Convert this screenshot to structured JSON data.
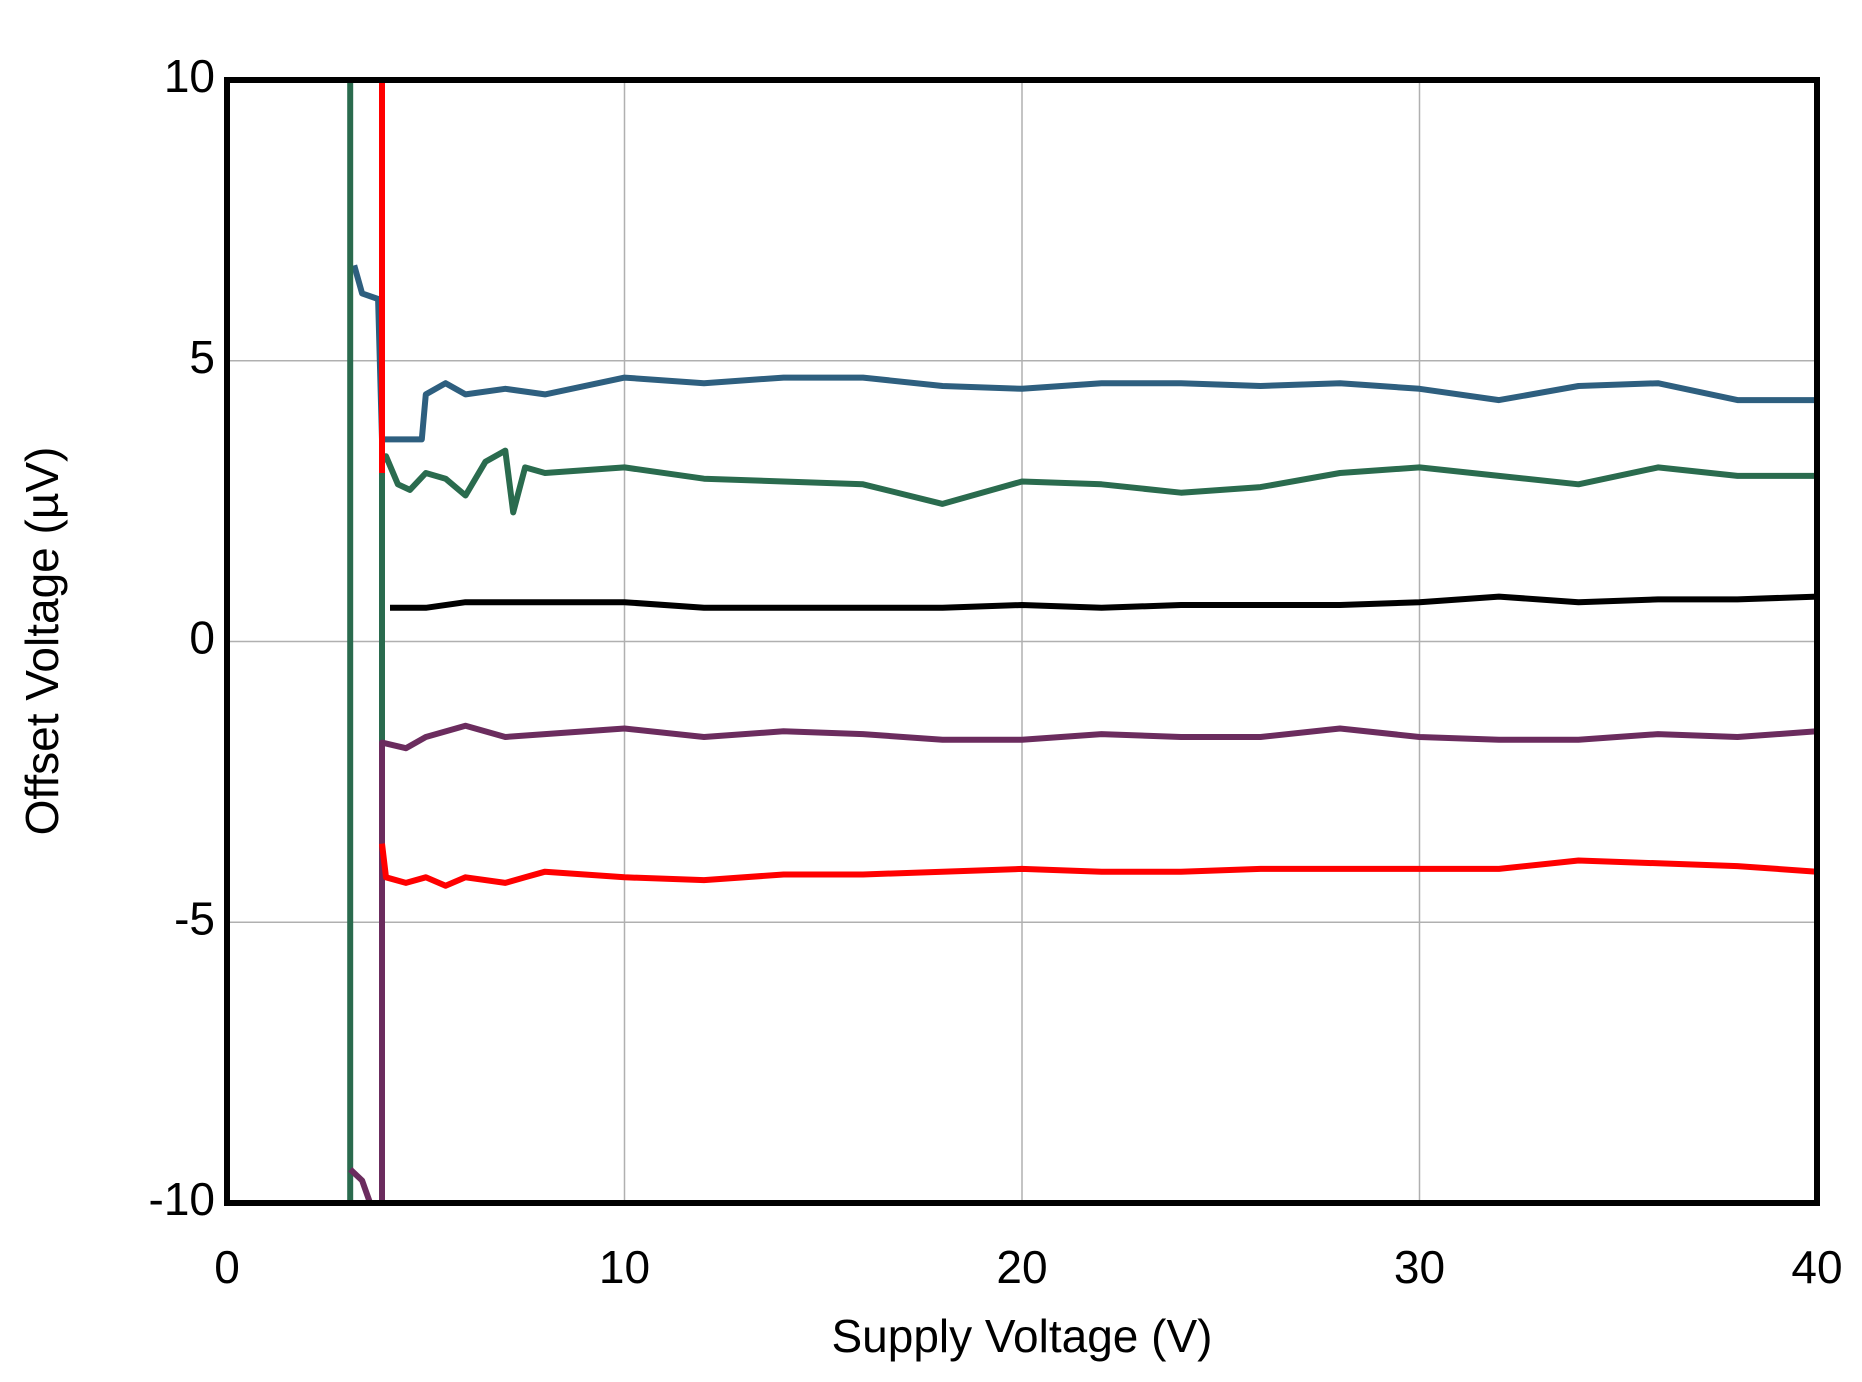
{
  "chart_data": {
    "type": "line",
    "x_label": "Supply Voltage (V)",
    "y_label": "Offset Voltage (µV)",
    "xlim": [
      0,
      40
    ],
    "ylim": [
      -10,
      10
    ],
    "xticks": [
      0,
      10,
      20,
      30,
      40
    ],
    "yticks": [
      -10,
      -5,
      0,
      5,
      10
    ],
    "grid": true,
    "series": [
      {
        "color": "#2e5f7f",
        "x": [
          3.2,
          3.4,
          3.8,
          3.9,
          4.9,
          5.0,
          5.5,
          6,
          7,
          8,
          10,
          12,
          14,
          16,
          18,
          20,
          22,
          24,
          26,
          28,
          30,
          32,
          34,
          36,
          38,
          40
        ],
        "values": [
          6.7,
          6.2,
          6.1,
          3.6,
          3.6,
          4.4,
          4.6,
          4.4,
          4.5,
          4.4,
          4.7,
          4.6,
          4.7,
          4.7,
          4.55,
          4.5,
          4.6,
          4.6,
          4.55,
          4.6,
          4.5,
          4.3,
          4.55,
          4.6,
          4.3,
          4.3
        ]
      },
      {
        "color": "#2a6b4e",
        "x": [
          3.1,
          3.1,
          3.9,
          3.9,
          4.0,
          4.3,
          4.6,
          5,
          5.5,
          6,
          6.5,
          7,
          7.2,
          7.5,
          8,
          10,
          12,
          14,
          16,
          18,
          20,
          22,
          24,
          26,
          28,
          30,
          32,
          34,
          36,
          38,
          40
        ],
        "values": [
          10,
          -10,
          -10,
          3.2,
          3.3,
          2.8,
          2.7,
          3.0,
          2.9,
          2.6,
          3.2,
          3.4,
          2.3,
          3.1,
          3.0,
          3.1,
          2.9,
          2.85,
          2.8,
          2.45,
          2.85,
          2.8,
          2.65,
          2.75,
          3.0,
          3.1,
          2.95,
          2.8,
          3.1,
          2.95,
          2.95
        ]
      },
      {
        "color": "#000000",
        "x": [
          4.1,
          5,
          6,
          7,
          8,
          10,
          12,
          14,
          16,
          18,
          20,
          22,
          24,
          26,
          28,
          30,
          32,
          34,
          36,
          38,
          40
        ],
        "values": [
          0.6,
          0.6,
          0.7,
          0.7,
          0.7,
          0.7,
          0.6,
          0.6,
          0.6,
          0.6,
          0.65,
          0.6,
          0.65,
          0.65,
          0.65,
          0.7,
          0.8,
          0.7,
          0.75,
          0.75,
          0.8
        ]
      },
      {
        "color": "#6b2c5e",
        "x": [
          3.1,
          3.4,
          3.6,
          3.9,
          3.9,
          4.5,
          5,
          6,
          7,
          8,
          10,
          12,
          14,
          16,
          18,
          20,
          22,
          24,
          26,
          28,
          30,
          32,
          34,
          36,
          38,
          40
        ],
        "values": [
          -9.4,
          -9.6,
          -10,
          -10,
          -1.8,
          -1.9,
          -1.7,
          -1.5,
          -1.7,
          -1.65,
          -1.55,
          -1.7,
          -1.6,
          -1.65,
          -1.75,
          -1.75,
          -1.65,
          -1.7,
          -1.7,
          -1.55,
          -1.7,
          -1.75,
          -1.75,
          -1.65,
          -1.7,
          -1.6
        ]
      },
      {
        "color": "#ff0000",
        "x": [
          3.9,
          3.9,
          3.9,
          3.9,
          4.0,
          4.5,
          5,
          5.5,
          6,
          7,
          7.5,
          8,
          10,
          12,
          14,
          16,
          18,
          20,
          22,
          24,
          26,
          28,
          30,
          32,
          34,
          36,
          38,
          40
        ],
        "values": [
          10,
          3.0,
          null,
          -3.6,
          -4.2,
          -4.3,
          -4.2,
          -4.35,
          -4.2,
          -4.3,
          -4.2,
          -4.1,
          -4.2,
          -4.25,
          -4.15,
          -4.15,
          -4.1,
          -4.05,
          -4.1,
          -4.1,
          -4.05,
          -4.05,
          -4.05,
          -4.05,
          -3.9,
          -3.95,
          -4.0,
          -4.1
        ]
      }
    ]
  }
}
